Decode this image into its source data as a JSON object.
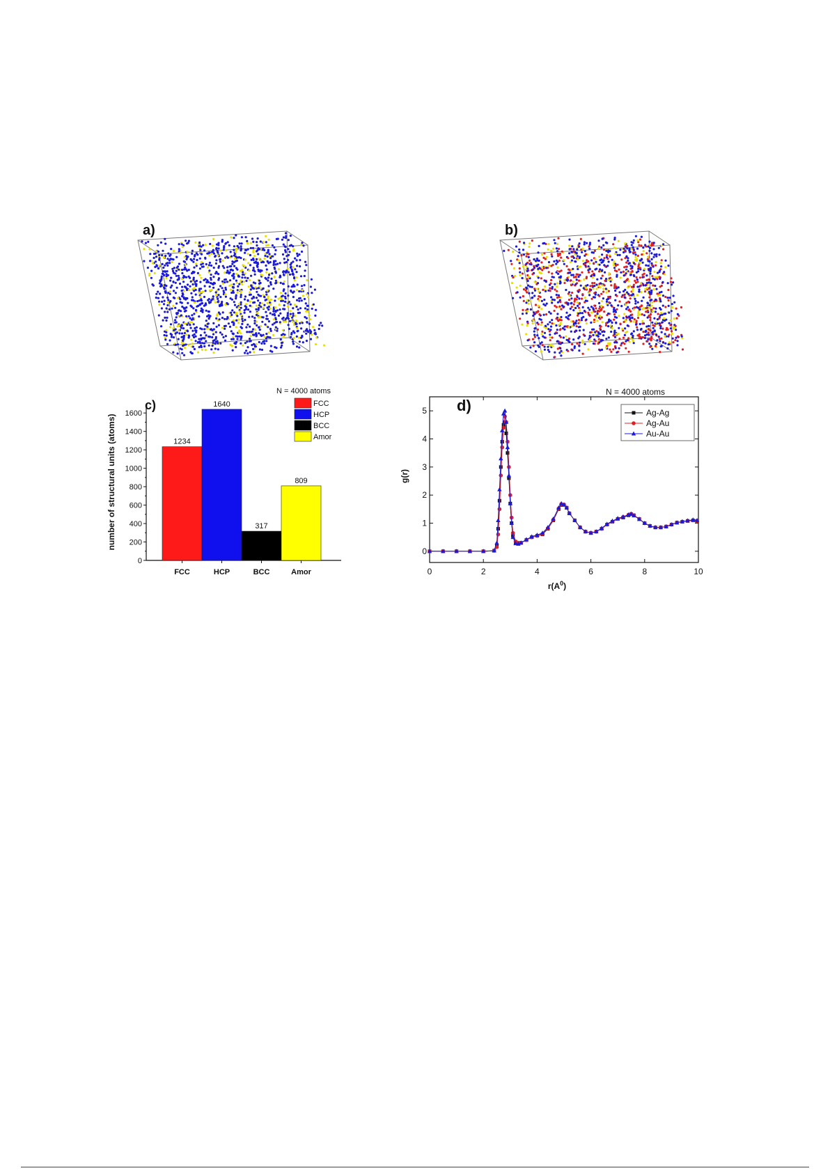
{
  "panels": {
    "a": {
      "label": "a)"
    },
    "b": {
      "label": "b)"
    },
    "c": {
      "label": "c)"
    },
    "d": {
      "label": "d)"
    }
  },
  "colors": {
    "blue": "#1a1ad8",
    "yellow": "#e8e000",
    "red": "#e02020",
    "black": "#111111"
  },
  "chart_data": [
    {
      "type": "bar",
      "panel": "c",
      "categories": [
        "FCC",
        "HCP",
        "BCC",
        "Amor"
      ],
      "values": [
        1234,
        1640,
        317,
        809
      ],
      "value_labels": [
        "1234",
        "1640",
        "317",
        "809"
      ],
      "colors": [
        "#ff1a1a",
        "#1010ee",
        "#000000",
        "#ffff00"
      ],
      "title": "",
      "xlabel": "",
      "ylabel": "number of structural units (atoms)",
      "ylim": [
        0,
        1700
      ],
      "yticks": [
        0,
        200,
        400,
        600,
        800,
        1000,
        1200,
        1400,
        1600
      ],
      "legend_title": "N = 4000 atoms",
      "legend": [
        "FCC",
        "HCP",
        "BCC",
        "Amor"
      ],
      "legend_placement": "top-right",
      "grid": false
    },
    {
      "type": "line",
      "panel": "d",
      "title": "",
      "xlabel": "r(A",
      "xlabel_sup": "0",
      "xlabel_end": ")",
      "ylabel": "g(r)",
      "xlim": [
        0,
        10
      ],
      "ylim": [
        -0.4,
        5.5
      ],
      "xticks": [
        0,
        2,
        4,
        6,
        8,
        10
      ],
      "yticks": [
        0,
        1,
        2,
        3,
        4,
        5
      ],
      "legend_title": "N = 4000 atoms",
      "legend_placement": "top-right",
      "grid": false,
      "series": [
        {
          "name": "Ag-Ag",
          "color": "#111111",
          "marker": "square",
          "x": [
            0,
            0.5,
            1,
            1.5,
            2,
            2.4,
            2.5,
            2.55,
            2.6,
            2.65,
            2.7,
            2.75,
            2.8,
            2.85,
            2.9,
            2.95,
            3,
            3.05,
            3.1,
            3.2,
            3.3,
            3.4,
            3.6,
            3.8,
            4,
            4.2,
            4.4,
            4.6,
            4.8,
            4.9,
            5,
            5.1,
            5.2,
            5.4,
            5.6,
            5.8,
            6,
            6.2,
            6.4,
            6.6,
            6.8,
            7,
            7.2,
            7.4,
            7.5,
            7.6,
            7.8,
            8,
            8.2,
            8.4,
            8.6,
            8.8,
            9,
            9.2,
            9.4,
            9.6,
            9.8,
            9.95
          ],
          "y": [
            0,
            0,
            0,
            0,
            0,
            0.02,
            0.2,
            0.8,
            1.8,
            3.0,
            3.9,
            4.5,
            4.6,
            4.2,
            3.5,
            2.6,
            1.7,
            1.0,
            0.55,
            0.3,
            0.28,
            0.3,
            0.4,
            0.5,
            0.55,
            0.6,
            0.8,
            1.1,
            1.5,
            1.65,
            1.65,
            1.55,
            1.35,
            1.1,
            0.85,
            0.7,
            0.65,
            0.7,
            0.8,
            0.95,
            1.05,
            1.15,
            1.2,
            1.28,
            1.32,
            1.28,
            1.15,
            1.0,
            0.9,
            0.85,
            0.85,
            0.88,
            0.95,
            1.02,
            1.05,
            1.08,
            1.1,
            1.08
          ]
        },
        {
          "name": "Ag-Au",
          "color": "#e02020",
          "marker": "circle",
          "x": [
            0,
            0.5,
            1,
            1.5,
            2,
            2.4,
            2.5,
            2.55,
            2.6,
            2.65,
            2.7,
            2.75,
            2.8,
            2.85,
            2.9,
            2.95,
            3,
            3.05,
            3.1,
            3.2,
            3.3,
            3.4,
            3.6,
            3.8,
            4,
            4.2,
            4.4,
            4.6,
            4.8,
            4.9,
            5,
            5.1,
            5.2,
            5.4,
            5.6,
            5.8,
            6,
            6.2,
            6.4,
            6.6,
            6.8,
            7,
            7.2,
            7.4,
            7.5,
            7.6,
            7.8,
            8,
            8.2,
            8.4,
            8.6,
            8.8,
            9,
            9.2,
            9.4,
            9.6,
            9.8,
            9.95
          ],
          "y": [
            0,
            0,
            0,
            0,
            0,
            0.02,
            0.15,
            0.6,
            1.5,
            2.7,
            3.7,
            4.4,
            4.8,
            4.6,
            3.9,
            3.0,
            2.0,
            1.2,
            0.65,
            0.35,
            0.3,
            0.3,
            0.4,
            0.5,
            0.55,
            0.62,
            0.82,
            1.12,
            1.52,
            1.68,
            1.66,
            1.55,
            1.35,
            1.1,
            0.85,
            0.7,
            0.66,
            0.7,
            0.8,
            0.95,
            1.05,
            1.15,
            1.22,
            1.3,
            1.33,
            1.28,
            1.15,
            1.0,
            0.9,
            0.85,
            0.85,
            0.88,
            0.95,
            1.02,
            1.05,
            1.08,
            1.1,
            1.08
          ]
        },
        {
          "name": "Au-Au",
          "color": "#1a1ad8",
          "marker": "triangle",
          "x": [
            0,
            0.5,
            1,
            1.5,
            2,
            2.4,
            2.5,
            2.55,
            2.6,
            2.65,
            2.7,
            2.75,
            2.8,
            2.85,
            2.9,
            2.95,
            3,
            3.05,
            3.1,
            3.2,
            3.3,
            3.4,
            3.6,
            3.8,
            4,
            4.2,
            4.4,
            4.6,
            4.8,
            4.9,
            5,
            5.1,
            5.2,
            5.4,
            5.6,
            5.8,
            6,
            6.2,
            6.4,
            6.6,
            6.8,
            7,
            7.2,
            7.4,
            7.5,
            7.6,
            7.8,
            8,
            8.2,
            8.4,
            8.6,
            8.8,
            9,
            9.2,
            9.4,
            9.6,
            9.8,
            9.95
          ],
          "y": [
            0,
            0,
            0,
            0,
            0,
            0.02,
            0.3,
            1.1,
            2.2,
            3.3,
            4.3,
            4.9,
            5.0,
            4.6,
            3.7,
            2.7,
            1.7,
            1.0,
            0.5,
            0.28,
            0.26,
            0.3,
            0.42,
            0.52,
            0.58,
            0.65,
            0.85,
            1.15,
            1.55,
            1.7,
            1.66,
            1.55,
            1.35,
            1.1,
            0.85,
            0.7,
            0.65,
            0.7,
            0.82,
            0.97,
            1.08,
            1.17,
            1.23,
            1.3,
            1.33,
            1.27,
            1.14,
            1.0,
            0.9,
            0.85,
            0.85,
            0.88,
            0.95,
            1.02,
            1.06,
            1.09,
            1.12,
            1.1
          ]
        }
      ]
    }
  ]
}
